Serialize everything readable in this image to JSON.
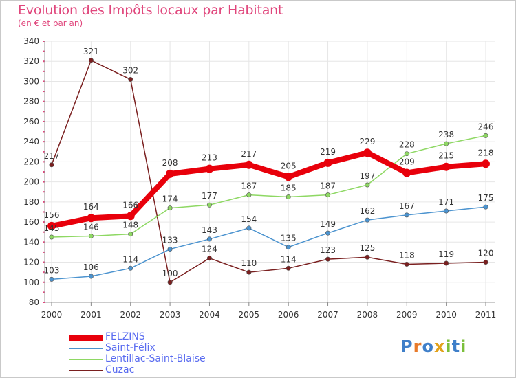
{
  "title": "Evolution des Impôts locaux par Habitant",
  "subtitle": "(en € et par an)",
  "logo_text": "Proxiti",
  "chart_data": {
    "type": "line",
    "x": [
      "2000",
      "2001",
      "2002",
      "2003",
      "2004",
      "2005",
      "2006",
      "2007",
      "2008",
      "2009",
      "2010",
      "2011"
    ],
    "ylim": [
      80,
      340
    ],
    "yticks": [
      80,
      100,
      120,
      140,
      160,
      180,
      200,
      220,
      240,
      260,
      280,
      300,
      320,
      340
    ],
    "grid": true,
    "legend_position": "bottom-left",
    "series": [
      {
        "name": "FELZINS",
        "color": "#e8000b",
        "values": [
          156,
          164,
          166,
          208,
          213,
          217,
          205,
          219,
          229,
          209,
          215,
          218
        ]
      },
      {
        "name": "Saint-Félix",
        "color": "#4b93cf",
        "values": [
          103,
          106,
          114,
          133,
          143,
          154,
          135,
          149,
          162,
          167,
          171,
          175
        ]
      },
      {
        "name": "Lentillac-Saint-Blaise",
        "color": "#8ed863",
        "values": [
          145,
          146,
          148,
          174,
          177,
          187,
          185,
          187,
          197,
          228,
          238,
          246
        ]
      },
      {
        "name": "Cuzac",
        "color": "#7a1f1f",
        "values": [
          217,
          321,
          302,
          100,
          124,
          110,
          114,
          123,
          125,
          118,
          119,
          120
        ]
      }
    ]
  }
}
